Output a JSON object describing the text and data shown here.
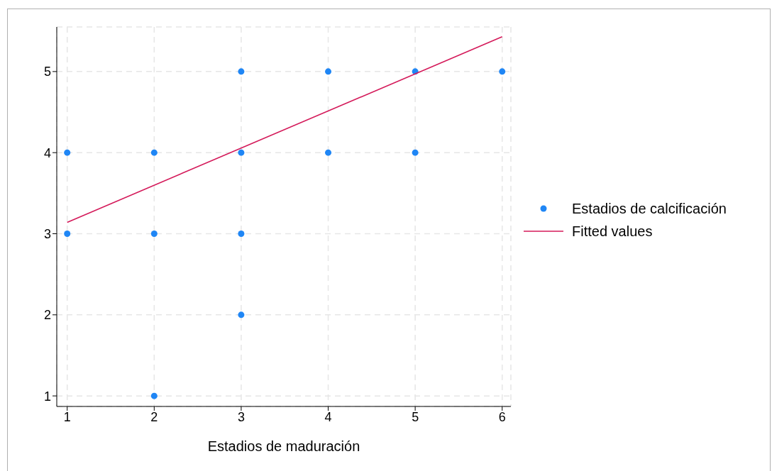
{
  "chart_data": {
    "type": "scatter",
    "xlabel": "Estadios de maduración",
    "xlim": [
      0.88,
      6.1
    ],
    "ylim": [
      0.87,
      5.55
    ],
    "xticks": [
      1,
      2,
      3,
      4,
      5,
      6
    ],
    "yticks": [
      1,
      2,
      3,
      4,
      5
    ],
    "grid": true,
    "legend": "right",
    "series": [
      {
        "name": "Estadios de calcificación",
        "type": "scatter",
        "color": "#1f86f5",
        "marker": "circle",
        "x": [
          1,
          1,
          2,
          2,
          2,
          3,
          3,
          3,
          3,
          4,
          4,
          5,
          5,
          6
        ],
        "values": [
          4,
          3,
          4,
          3,
          1,
          5,
          4,
          3,
          2,
          5,
          4,
          5,
          4,
          5
        ]
      },
      {
        "name": "Fitted values",
        "type": "line",
        "color": "#d41a5a",
        "marker": "none",
        "line_style": "solid",
        "x": [
          1,
          6
        ],
        "values": [
          3.14,
          5.43
        ]
      }
    ]
  }
}
